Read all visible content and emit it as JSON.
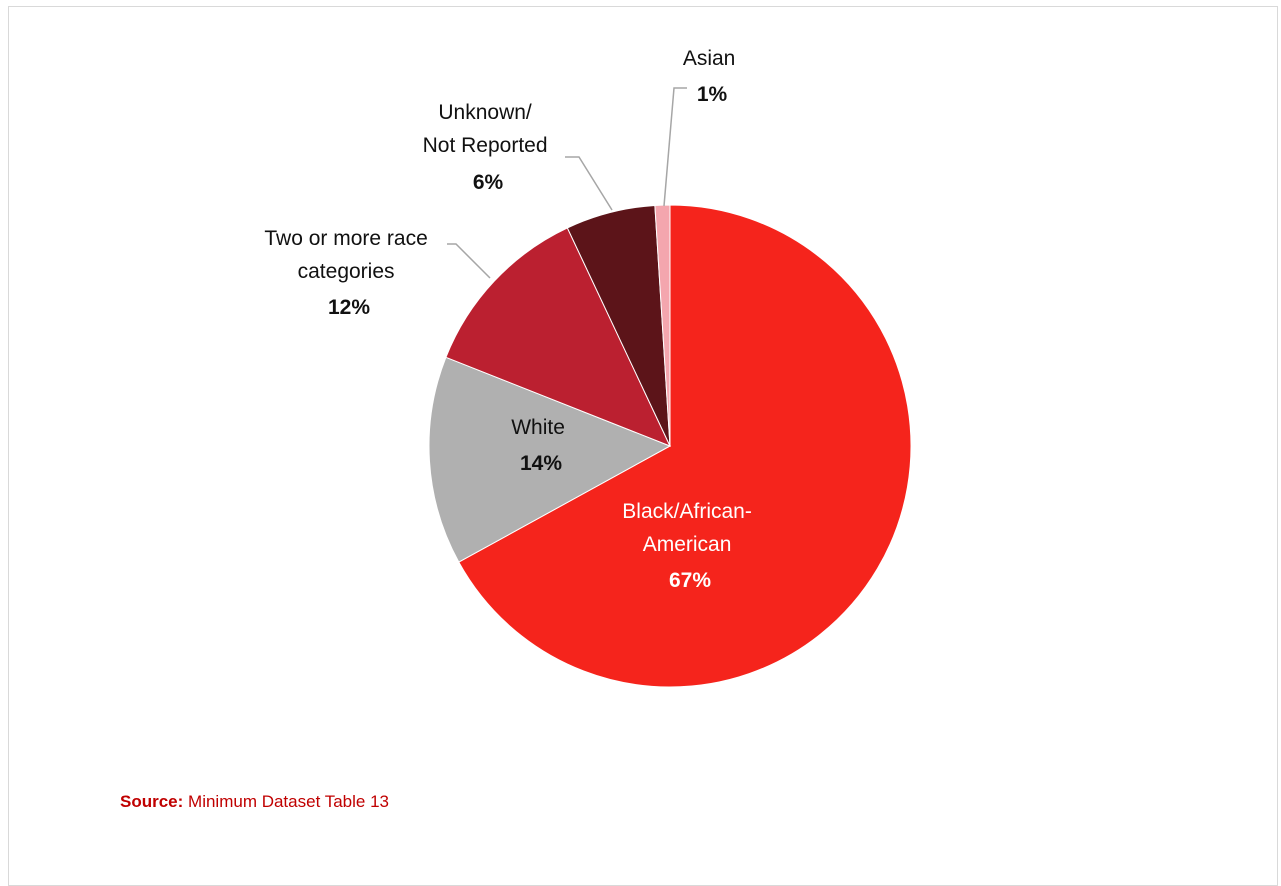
{
  "chart_data": {
    "type": "pie",
    "slices": [
      {
        "label_lines": [
          "Black/African-",
          "American"
        ],
        "value": 67,
        "value_label": "67%",
        "color": "#f5241c",
        "label_color": "#ffffff"
      },
      {
        "label_lines": [
          "White"
        ],
        "value": 14,
        "value_label": "14%",
        "color": "#b0b0b0",
        "label_color": "#111111"
      },
      {
        "label_lines": [
          "Two or more race",
          "categories"
        ],
        "value": 12,
        "value_label": "12%",
        "color": "#bb2030",
        "label_color": "#111111"
      },
      {
        "label_lines": [
          "Unknown/",
          "Not Reported"
        ],
        "value": 6,
        "value_label": "6%",
        "color": "#5c1419",
        "label_color": "#111111"
      },
      {
        "label_lines": [
          "Asian"
        ],
        "value": 1,
        "value_label": "1%",
        "color": "#f4a6ae",
        "label_color": "#111111"
      }
    ]
  },
  "source": {
    "label": "Source:",
    "text": "Minimum Dataset Table 13"
  }
}
